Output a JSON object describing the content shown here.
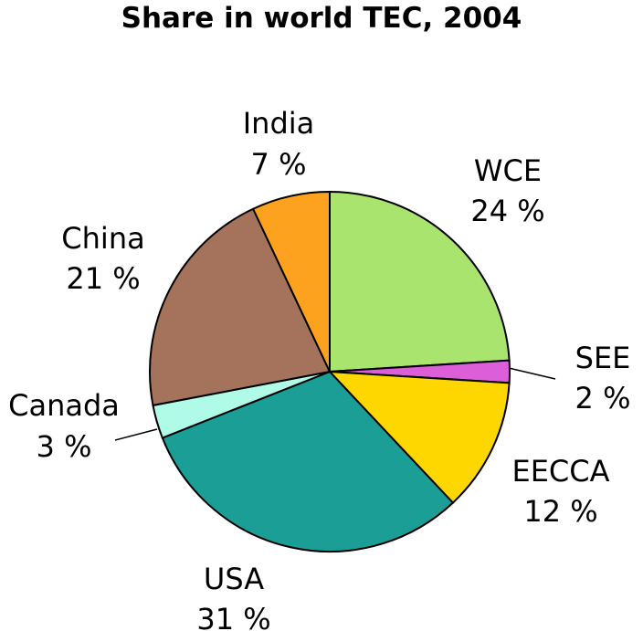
{
  "chart_data": {
    "type": "pie",
    "title": "Share in world TEC, 2004",
    "slices": [
      {
        "label": "WCE",
        "pct_label": "24 %",
        "value": 24,
        "color": "#a9e46f"
      },
      {
        "label": "SEE",
        "pct_label": "2 %",
        "value": 2,
        "color": "#dc5fd9"
      },
      {
        "label": "EECCA",
        "pct_label": "12 %",
        "value": 12,
        "color": "#ffd700"
      },
      {
        "label": "USA",
        "pct_label": "31 %",
        "value": 31,
        "color": "#1a9e96"
      },
      {
        "label": "Canada",
        "pct_label": "3 %",
        "value": 3,
        "color": "#b0fbe8"
      },
      {
        "label": "China",
        "pct_label": "21 %",
        "value": 21,
        "color": "#a5735b"
      },
      {
        "label": "India",
        "pct_label": "7 %",
        "value": 7,
        "color": "#fda21e"
      }
    ]
  }
}
